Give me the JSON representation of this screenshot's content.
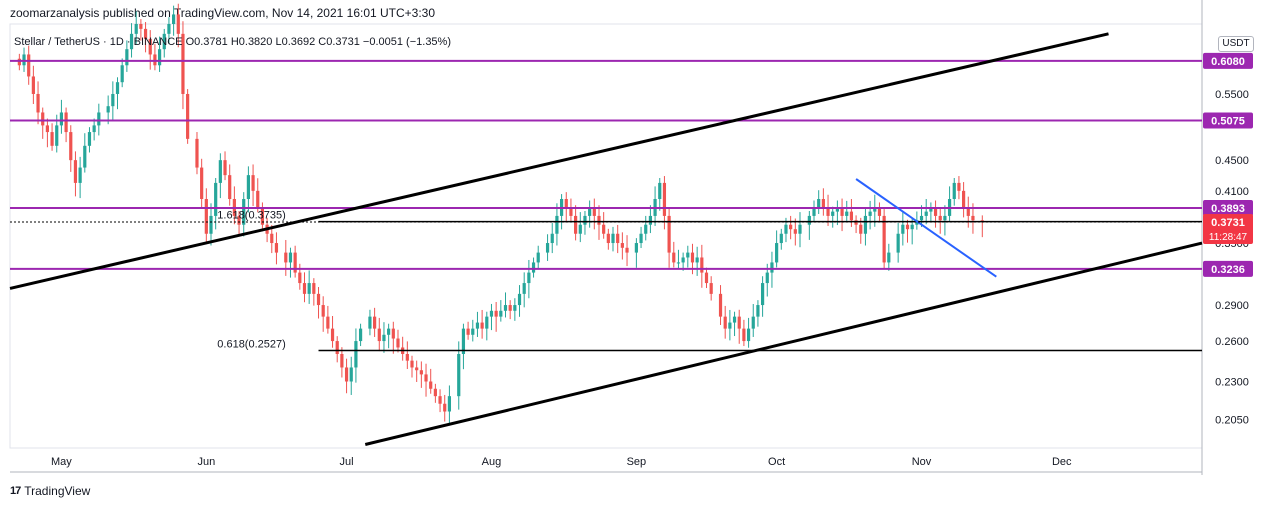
{
  "header": {
    "publisher": "zoomarzanalysis published on TradingView.com, Nov 14, 2021 16:01 UTC+3:30",
    "symbol": "Stellar / TetherUS",
    "timeframe": "1D",
    "exchange": "BINANCE",
    "ohlc_text": "O0.3781  H0.3820  L0.3692  C0.3731  −0.0051 (−1.35%)"
  },
  "currency": "USDT",
  "footer": {
    "brand": "TradingView"
  },
  "colors": {
    "up": "#26a69a",
    "down": "#ef5350",
    "level": "#9c27b0",
    "trendline": "#000000",
    "blue_line": "#2962ff",
    "price_tag": "#f23645"
  },
  "chart_data": {
    "type": "candlestick",
    "title": "Stellar / TetherUS · 1D · BINANCE",
    "x_ticks": [
      "May",
      "Jun",
      "Jul",
      "Aug",
      "Sep",
      "Oct",
      "Nov",
      "Dec"
    ],
    "y_ticks": [
      0.205,
      0.23,
      0.26,
      0.29,
      0.35,
      0.41,
      0.45,
      0.55
    ],
    "y_tick_labels": [
      "0.2050",
      "0.2300",
      "0.2600",
      "0.2900",
      "0.3500",
      "0.4100",
      "0.4500",
      "0.5500"
    ],
    "y_range": [
      0.188,
      0.68
    ],
    "y_scale": "log",
    "date_range": [
      "2021-04-20",
      "2021-12-31"
    ],
    "levels": [
      {
        "label": "0.6080",
        "value": 0.608
      },
      {
        "label": "0.5075",
        "value": 0.5075
      },
      {
        "label": "0.3893",
        "value": 0.3893
      },
      {
        "label": "0.3236",
        "value": 0.3236
      }
    ],
    "last_price": {
      "label": "0.3731",
      "countdown": "11:28:47",
      "value": 0.3731
    },
    "fib_levels": [
      {
        "label": "1.618(0.3735)",
        "value": 0.3735
      },
      {
        "label": "0.618(0.2527)",
        "value": 0.2527
      }
    ],
    "candle_closes": [
      0.6,
      0.62,
      0.58,
      0.55,
      0.52,
      0.5,
      0.49,
      0.47,
      0.5,
      0.52,
      0.49,
      0.45,
      0.42,
      0.44,
      0.47,
      0.49,
      0.5,
      0.52,
      0.53,
      0.55,
      0.57,
      0.6,
      0.63,
      0.66,
      0.68,
      0.67,
      0.65,
      0.62,
      0.6,
      0.63,
      0.66,
      0.68,
      0.7,
      0.66,
      0.55,
      0.48,
      0.44,
      0.4,
      0.36,
      0.38,
      0.42,
      0.45,
      0.43,
      0.4,
      0.38,
      0.37,
      0.4,
      0.43,
      0.41,
      0.39,
      0.37,
      0.36,
      0.35,
      0.34,
      0.33,
      0.34,
      0.32,
      0.31,
      0.3,
      0.31,
      0.3,
      0.29,
      0.28,
      0.27,
      0.26,
      0.25,
      0.24,
      0.23,
      0.24,
      0.26,
      0.27,
      0.28,
      0.27,
      0.26,
      0.265,
      0.27,
      0.262,
      0.255,
      0.25,
      0.245,
      0.24,
      0.238,
      0.235,
      0.23,
      0.225,
      0.22,
      0.215,
      0.21,
      0.22,
      0.25,
      0.27,
      0.265,
      0.27,
      0.275,
      0.27,
      0.28,
      0.285,
      0.28,
      0.285,
      0.29,
      0.285,
      0.29,
      0.3,
      0.31,
      0.32,
      0.33,
      0.34,
      0.35,
      0.36,
      0.38,
      0.4,
      0.39,
      0.38,
      0.36,
      0.37,
      0.38,
      0.39,
      0.38,
      0.37,
      0.36,
      0.35,
      0.36,
      0.35,
      0.345,
      0.34,
      0.35,
      0.36,
      0.37,
      0.38,
      0.4,
      0.42,
      0.38,
      0.34,
      0.33,
      0.33,
      0.335,
      0.34,
      0.33,
      0.335,
      0.32,
      0.31,
      0.3,
      0.28,
      0.27,
      0.275,
      0.28,
      0.27,
      0.26,
      0.27,
      0.28,
      0.29,
      0.31,
      0.32,
      0.33,
      0.35,
      0.36,
      0.37,
      0.365,
      0.36,
      0.37,
      0.38,
      0.39,
      0.4,
      0.39,
      0.38,
      0.385,
      0.39,
      0.38,
      0.385,
      0.375,
      0.37,
      0.36,
      0.38,
      0.385,
      0.39,
      0.38,
      0.33,
      0.34,
      0.36,
      0.37,
      0.365,
      0.37,
      0.375,
      0.38,
      0.385,
      0.39,
      0.38,
      0.375,
      0.38,
      0.4,
      0.42,
      0.41,
      0.39,
      0.38,
      0.375,
      0.3731
    ]
  }
}
